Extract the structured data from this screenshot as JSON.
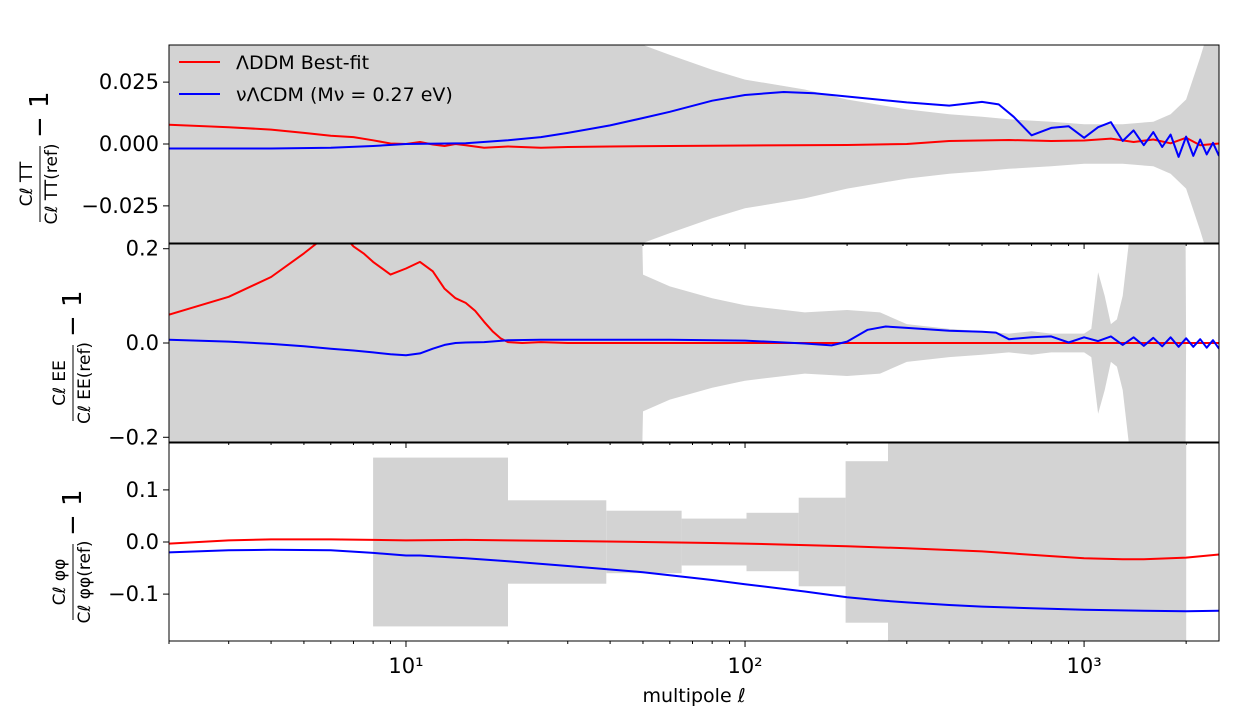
{
  "chart_data": {
    "type": "line",
    "x_scale": "log",
    "xlim": [
      2,
      2500
    ],
    "xlabel": "multipole ℓ",
    "x_tick_labels": [
      "10¹",
      "10²",
      "10³"
    ],
    "x_ticks": [
      10,
      100,
      1000
    ],
    "colors": {
      "band": "#d3d3d3",
      "series_red": "#ff0000",
      "series_blue": "#0000ff"
    },
    "legend": {
      "location": "top-left",
      "entries": [
        "ΛDDM  Best-fit",
        "νΛCDM (Mν = 0.27 eV)"
      ]
    },
    "panels": [
      {
        "ylabel": {
          "num": "C_ℓ^TT",
          "den": "C_ℓ^TT(ref)",
          "suffix": "− 1"
        },
        "ylim": [
          -0.04,
          0.04
        ],
        "y_ticks": [
          -0.025,
          0.0,
          0.025
        ],
        "y_tick_labels": [
          "−0.025",
          "0.000",
          "0.025"
        ],
        "band": {
          "x": [
            2,
            10,
            20,
            40,
            49.5,
            50,
            60,
            80,
            100,
            150,
            200,
            300,
            400,
            500,
            600,
            800,
            1000,
            1300,
            1600,
            1800,
            2000,
            2200,
            2500
          ],
          "upper": [
            0.06,
            0.06,
            0.06,
            0.06,
            0.06,
            0.04,
            0.036,
            0.03,
            0.026,
            0.022,
            0.018,
            0.014,
            0.012,
            0.011,
            0.01,
            0.009,
            0.008,
            0.008,
            0.009,
            0.012,
            0.018,
            0.035,
            0.06
          ],
          "lower": [
            -0.06,
            -0.06,
            -0.06,
            -0.06,
            -0.06,
            -0.04,
            -0.036,
            -0.03,
            -0.026,
            -0.022,
            -0.018,
            -0.014,
            -0.012,
            -0.011,
            -0.01,
            -0.009,
            -0.008,
            -0.008,
            -0.009,
            -0.012,
            -0.018,
            -0.035,
            -0.06
          ]
        },
        "series": [
          {
            "name": "ΛDDM  Best-fit",
            "color": "red",
            "x": [
              2,
              3,
              4,
              5,
              6,
              7,
              8,
              9,
              10,
              11,
              12,
              13,
              14,
              15,
              17,
              20,
              25,
              30,
              40,
              60,
              100,
              200,
              300,
              400,
              600,
              800,
              1000,
              1200,
              1400,
              1600,
              1800,
              2000,
              2200,
              2500
            ],
            "y": [
              0.0078,
              0.0068,
              0.0058,
              0.0045,
              0.0033,
              0.0028,
              0.0015,
              0.0002,
              0.0,
              0.0008,
              -0.0002,
              -0.0008,
              0.0,
              -0.0005,
              -0.0015,
              -0.001,
              -0.0015,
              -0.0012,
              -0.001,
              -0.0008,
              -0.0006,
              -0.0004,
              0.0,
              0.0012,
              0.0016,
              0.0012,
              0.0014,
              0.0022,
              0.0008,
              0.0018,
              0.0003,
              0.0025,
              -0.0005,
              0.0002
            ]
          },
          {
            "name": "νΛCDM (Mν = 0.27 eV)",
            "color": "blue",
            "x": [
              2,
              4,
              6,
              8,
              10,
              15,
              20,
              25,
              30,
              40,
              50,
              60,
              80,
              100,
              130,
              160,
              200,
              300,
              400,
              500,
              560,
              620,
              700,
              800,
              900,
              1000,
              1100,
              1200,
              1300,
              1400,
              1500,
              1600,
              1700,
              1800,
              1900,
              2000,
              2100,
              2200,
              2300,
              2400,
              2500
            ],
            "y": [
              -0.0018,
              -0.0018,
              -0.0015,
              -0.0008,
              0.0,
              0.0003,
              0.0015,
              0.0028,
              0.0045,
              0.0075,
              0.0105,
              0.013,
              0.0175,
              0.0198,
              0.021,
              0.0205,
              0.0192,
              0.0168,
              0.0155,
              0.017,
              0.016,
              0.011,
              0.0035,
              0.0065,
              0.0072,
              0.0025,
              0.0068,
              0.0088,
              0.0012,
              0.0055,
              -0.0005,
              0.0048,
              -0.0012,
              0.0038,
              -0.0052,
              0.003,
              -0.0048,
              0.0018,
              -0.0042,
              0.0005,
              -0.0048
            ]
          }
        ]
      },
      {
        "ylabel": {
          "num": "C_ℓ^EE",
          "den": "C_ℓ^EE(ref)",
          "suffix": "− 1"
        },
        "ylim": [
          -0.21,
          0.21
        ],
        "y_ticks": [
          -0.2,
          0.0,
          0.2
        ],
        "y_tick_labels": [
          "−0.2",
          "0.0",
          "0.2"
        ],
        "band": {
          "x": [
            2,
            10,
            20,
            40,
            49.5,
            50,
            60,
            80,
            100,
            150,
            200,
            250,
            300,
            400,
            500,
            600,
            700,
            800,
            900,
            1000,
            1050,
            1100,
            1150,
            1200,
            1250,
            1300,
            1400,
            1500,
            1700,
            1990,
            2000,
            2500
          ],
          "upper": [
            0.3,
            0.3,
            0.3,
            0.3,
            0.3,
            0.145,
            0.12,
            0.095,
            0.08,
            0.065,
            0.07,
            0.065,
            0.04,
            0.03,
            0.025,
            0.02,
            0.025,
            0.02,
            0.02,
            0.02,
            0.03,
            0.15,
            0.1,
            0.04,
            0.05,
            0.1,
            0.3,
            0.3,
            0.3,
            0.3,
            0.0,
            0.0
          ],
          "lower": [
            -0.3,
            -0.3,
            -0.3,
            -0.3,
            -0.3,
            -0.145,
            -0.12,
            -0.095,
            -0.08,
            -0.065,
            -0.07,
            -0.065,
            -0.04,
            -0.03,
            -0.025,
            -0.02,
            -0.025,
            -0.02,
            -0.02,
            -0.02,
            -0.03,
            -0.15,
            -0.1,
            -0.04,
            -0.05,
            -0.1,
            -0.3,
            -0.3,
            -0.3,
            -0.3,
            0.0,
            0.0
          ]
        },
        "series": [
          {
            "name": "ΛDDM  Best-fit",
            "color": "red",
            "x": [
              2,
              3,
              4,
              5,
              6,
              6.5,
              7,
              7.5,
              8,
              9,
              10,
              11,
              12,
              13,
              14,
              15,
              16,
              17,
              18,
              19,
              20,
              22,
              25,
              30,
              40,
              100,
              200,
              300,
              500,
              1000,
              1500,
              2000,
              2500
            ],
            "y": [
              0.06,
              0.098,
              0.14,
              0.19,
              0.235,
              0.23,
              0.205,
              0.19,
              0.172,
              0.145,
              0.158,
              0.172,
              0.152,
              0.115,
              0.095,
              0.085,
              0.068,
              0.045,
              0.025,
              0.01,
              0.002,
              0.0,
              0.002,
              0.0,
              0.0,
              0.0,
              0.0,
              0.0,
              0.0,
              0.0,
              0.0,
              0.0,
              0.0
            ]
          },
          {
            "name": "νΛCDM (Mν = 0.27 eV)",
            "color": "blue",
            "x": [
              2,
              3,
              4,
              5,
              6,
              7,
              8,
              9,
              10,
              11,
              12,
              13,
              14,
              15,
              17,
              20,
              25,
              30,
              40,
              60,
              100,
              150,
              180,
              200,
              230,
              260,
              300,
              400,
              500,
              550,
              600,
              700,
              800,
              900,
              1000,
              1100,
              1200,
              1300,
              1400,
              1500,
              1600,
              1700,
              1800,
              1900,
              2000,
              2100,
              2200,
              2300,
              2400,
              2500
            ],
            "y": [
              0.007,
              0.003,
              -0.002,
              -0.007,
              -0.012,
              -0.016,
              -0.02,
              -0.024,
              -0.026,
              -0.022,
              -0.012,
              -0.004,
              0.0,
              0.001,
              0.002,
              0.006,
              0.007,
              0.007,
              0.007,
              0.007,
              0.005,
              -0.001,
              -0.005,
              0.003,
              0.028,
              0.035,
              0.032,
              0.026,
              0.024,
              0.022,
              0.008,
              0.012,
              0.014,
              0.001,
              0.012,
              0.004,
              0.014,
              -0.004,
              0.012,
              -0.006,
              0.011,
              -0.007,
              0.012,
              -0.008,
              0.01,
              -0.008,
              0.008,
              -0.01,
              0.006,
              -0.012
            ]
          }
        ]
      },
      {
        "ylabel": {
          "num": "C_ℓ^φφ",
          "den": "C_ℓ^φφ(ref)",
          "suffix": "− 1"
        },
        "ylim": [
          -0.19,
          0.19
        ],
        "y_ticks": [
          -0.1,
          0.0,
          0.1
        ],
        "y_tick_labels": [
          "−0.1",
          "0.0",
          "0.1"
        ],
        "bins": [
          {
            "x0": 8,
            "x1": 20,
            "upper": 0.162,
            "lower": -0.162
          },
          {
            "x0": 20,
            "x1": 39,
            "upper": 0.08,
            "lower": -0.08
          },
          {
            "x0": 39,
            "x1": 65,
            "upper": 0.06,
            "lower": -0.06
          },
          {
            "x0": 65,
            "x1": 101,
            "upper": 0.045,
            "lower": -0.045
          },
          {
            "x0": 101,
            "x1": 144,
            "upper": 0.056,
            "lower": -0.056
          },
          {
            "x0": 144,
            "x1": 198,
            "upper": 0.085,
            "lower": -0.085
          },
          {
            "x0": 198,
            "x1": 264,
            "upper": 0.155,
            "lower": -0.155
          },
          {
            "x0": 264,
            "x1": 2000,
            "upper": 0.19,
            "lower": -0.19
          }
        ],
        "series": [
          {
            "name": "ΛDDM  Best-fit",
            "color": "red",
            "x": [
              2,
              3,
              4,
              6,
              8,
              10,
              15,
              20,
              30,
              50,
              80,
              100,
              150,
              200,
              300,
              500,
              800,
              1000,
              1300,
              1500,
              2000,
              2500
            ],
            "y": [
              -0.003,
              0.003,
              0.005,
              0.005,
              0.004,
              0.003,
              0.004,
              0.003,
              0.002,
              0.0,
              -0.002,
              -0.003,
              -0.006,
              -0.008,
              -0.012,
              -0.018,
              -0.027,
              -0.031,
              -0.033,
              -0.033,
              -0.03,
              -0.024
            ]
          },
          {
            "name": "νΛCDM (Mν = 0.27 eV)",
            "color": "blue",
            "x": [
              2,
              3,
              4,
              6,
              8,
              10,
              11,
              15,
              20,
              30,
              50,
              80,
              100,
              150,
              200,
              250,
              300,
              400,
              500,
              700,
              1000,
              1500,
              2000,
              2500
            ],
            "y": [
              -0.02,
              -0.016,
              -0.015,
              -0.016,
              -0.021,
              -0.026,
              -0.026,
              -0.031,
              -0.037,
              -0.046,
              -0.058,
              -0.073,
              -0.081,
              -0.095,
              -0.106,
              -0.112,
              -0.116,
              -0.121,
              -0.124,
              -0.127,
              -0.13,
              -0.132,
              -0.133,
              -0.132
            ]
          }
        ]
      }
    ]
  }
}
